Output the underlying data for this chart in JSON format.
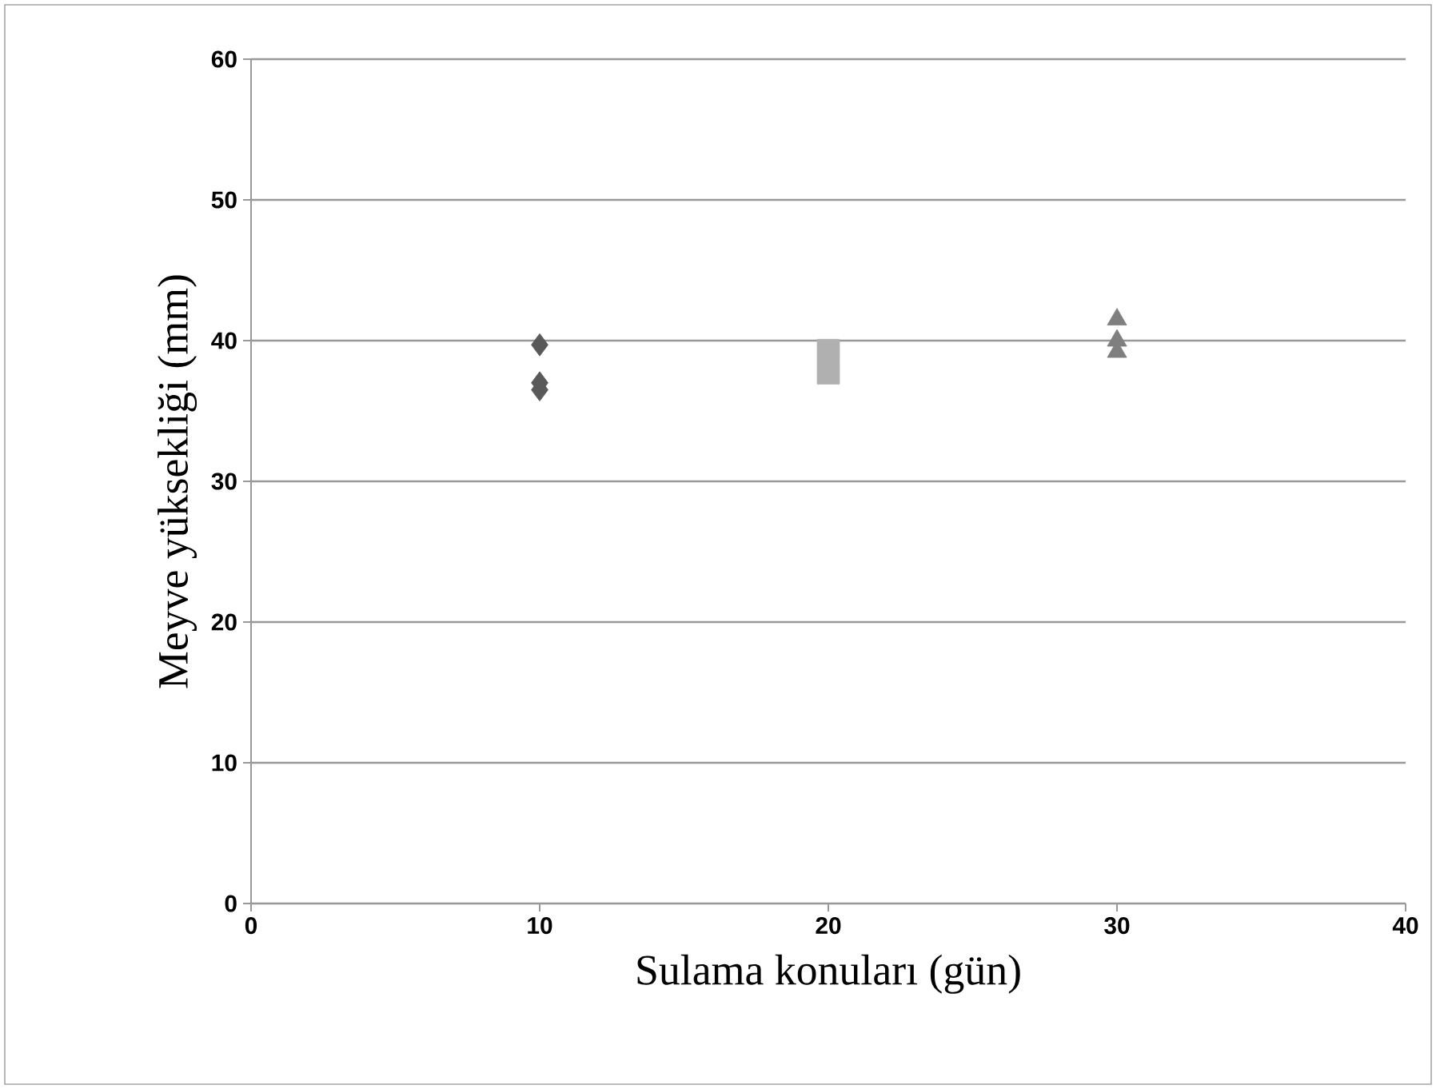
{
  "chart_data": {
    "type": "scatter",
    "xlabel": "Sulama konuları (gün)",
    "ylabel": "Meyve yüksekliği (mm)",
    "xlim": [
      0,
      40
    ],
    "xticks": [
      0,
      10,
      20,
      30,
      40
    ],
    "ylim": [
      0,
      60
    ],
    "yticks": [
      0,
      10,
      20,
      30,
      40,
      50,
      60
    ],
    "grid": "y",
    "series": [
      {
        "color": "#595959",
        "marker": "diamond",
        "x": [
          10,
          10,
          10
        ],
        "values": [
          39.7,
          37.0,
          36.5
        ]
      },
      {
        "color": "#b0b0b0",
        "marker": "square",
        "x": [
          20,
          20
        ],
        "values": [
          39.3,
          37.7
        ]
      },
      {
        "color": "#7f7f7f",
        "marker": "triangle",
        "x": [
          30,
          30,
          30
        ],
        "values": [
          41.5,
          40.0,
          39.2
        ]
      }
    ]
  }
}
